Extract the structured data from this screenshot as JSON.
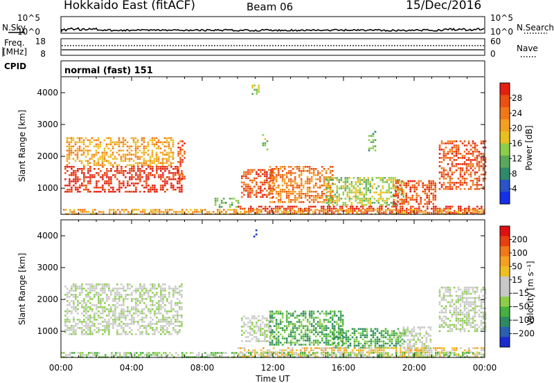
{
  "header": {
    "station": "Hokkaido East (fitACF)",
    "beam": "Beam 06",
    "date": "15/Dec/2016"
  },
  "strip": {
    "nsky_label": "N.Sky",
    "nsearch_label": "N.Search",
    "nsky_ticks": [
      "10^5",
      "10^0"
    ],
    "nsearch_ticks": [
      "10^5",
      "10^0"
    ],
    "freq_label_1": "Freq.",
    "freq_label_2": "[MHz]",
    "freq_ticks": [
      "18",
      "8"
    ],
    "nave_label": "Nave",
    "nave_ticks": [
      "60",
      "0"
    ],
    "cpid_label": "CPID",
    "cpid_value": "normal (fast) 151"
  },
  "chart_data": [
    {
      "type": "heatmap",
      "name": "power",
      "ylabel": "Slant Range [km]",
      "ylim": [
        180,
        4500
      ],
      "yticks": [
        "1000",
        "2000",
        "3000",
        "4000"
      ],
      "xlim_hours": [
        0,
        24
      ],
      "colorbar": {
        "label": "Power [dB]",
        "ticks": [
          "4",
          "8",
          "12",
          "16",
          "20",
          "24",
          "28"
        ],
        "colors": [
          "#1530e8",
          "#2a54c8",
          "#2e8a6a",
          "#5aa85a",
          "#8ccd4a",
          "#e8c020",
          "#f5a020",
          "#f07818",
          "#ea5010",
          "#e32010"
        ]
      },
      "regions": [
        {
          "t0": 0.2,
          "t1": 6.8,
          "r0": 900,
          "r1": 1700,
          "c": 9
        },
        {
          "t0": 0.3,
          "t1": 6.4,
          "r0": 1700,
          "r1": 2600,
          "c": 6
        },
        {
          "t0": 6.6,
          "t1": 7.0,
          "r0": 1200,
          "r1": 2500,
          "c": 8
        },
        {
          "t0": 8.7,
          "t1": 10.0,
          "r0": 400,
          "r1": 700,
          "c": 3
        },
        {
          "t0": 10.2,
          "t1": 12.0,
          "r0": 700,
          "r1": 1600,
          "c": 8
        },
        {
          "t0": 11.8,
          "t1": 15.4,
          "r0": 550,
          "r1": 1700,
          "c": 7
        },
        {
          "t0": 15.0,
          "t1": 19.4,
          "r0": 450,
          "r1": 1350,
          "c": 4
        },
        {
          "t0": 18.8,
          "t1": 21.2,
          "r0": 500,
          "r1": 1250,
          "c": 8
        },
        {
          "t0": 21.4,
          "t1": 24.0,
          "r0": 1000,
          "r1": 2500,
          "c": 8
        },
        {
          "t0": 10.0,
          "t1": 24.0,
          "r0": 200,
          "r1": 450,
          "c": 9
        },
        {
          "t0": 0.0,
          "t1": 24.0,
          "r0": 180,
          "r1": 350,
          "c": 6
        },
        {
          "t0": 10.8,
          "t1": 11.2,
          "r0": 3950,
          "r1": 4250,
          "c": 4
        },
        {
          "t0": 11.4,
          "t1": 11.7,
          "r0": 2200,
          "r1": 2700,
          "c": 4
        },
        {
          "t0": 17.4,
          "t1": 17.8,
          "r0": 2200,
          "r1": 2800,
          "c": 3
        }
      ]
    },
    {
      "type": "heatmap",
      "name": "velocity",
      "ylabel": "Slant Range [km]",
      "xlabel": "Time UT",
      "ylim": [
        180,
        4500
      ],
      "yticks": [
        "1000",
        "2000",
        "3000",
        "4000"
      ],
      "xticks": [
        "00:00",
        "04:00",
        "08:00",
        "12:00",
        "16:00",
        "20:00",
        "00:00"
      ],
      "xlim_hours": [
        0,
        24
      ],
      "colorbar": {
        "label": "Velocity [m s⁻¹]",
        "ticks": [
          "200",
          "100",
          "50",
          "15",
          "−15",
          "−50",
          "−100",
          "−200"
        ],
        "colors": [
          "#1a2ad0",
          "#2a60b0",
          "#2e8a60",
          "#46b040",
          "#8ccd4a",
          "#c8c8c8",
          "#c8c8c8",
          "#f0c020",
          "#f5a020",
          "#f07818",
          "#e84010",
          "#e01010"
        ]
      },
      "regions": [
        {
          "t0": 0.2,
          "t1": 6.9,
          "r0": 900,
          "r1": 2500,
          "c": 5
        },
        {
          "t0": 10.2,
          "t1": 12.0,
          "r0": 700,
          "r1": 1500,
          "c": 5
        },
        {
          "t0": 11.8,
          "t1": 16.0,
          "r0": 550,
          "r1": 1650,
          "c": 3
        },
        {
          "t0": 15.4,
          "t1": 19.5,
          "r0": 500,
          "r1": 1100,
          "c": 3
        },
        {
          "t0": 19.0,
          "t1": 21.0,
          "r0": 400,
          "r1": 1150,
          "c": 5
        },
        {
          "t0": 21.4,
          "t1": 24.0,
          "r0": 1000,
          "r1": 2400,
          "c": 5
        },
        {
          "t0": 10.0,
          "t1": 24.0,
          "r0": 200,
          "r1": 500,
          "c": 7
        },
        {
          "t0": 0.0,
          "t1": 24.0,
          "r0": 180,
          "r1": 350,
          "c": 4
        },
        {
          "t0": 10.9,
          "t1": 11.1,
          "r0": 3950,
          "r1": 4200,
          "c": 0
        }
      ]
    }
  ]
}
